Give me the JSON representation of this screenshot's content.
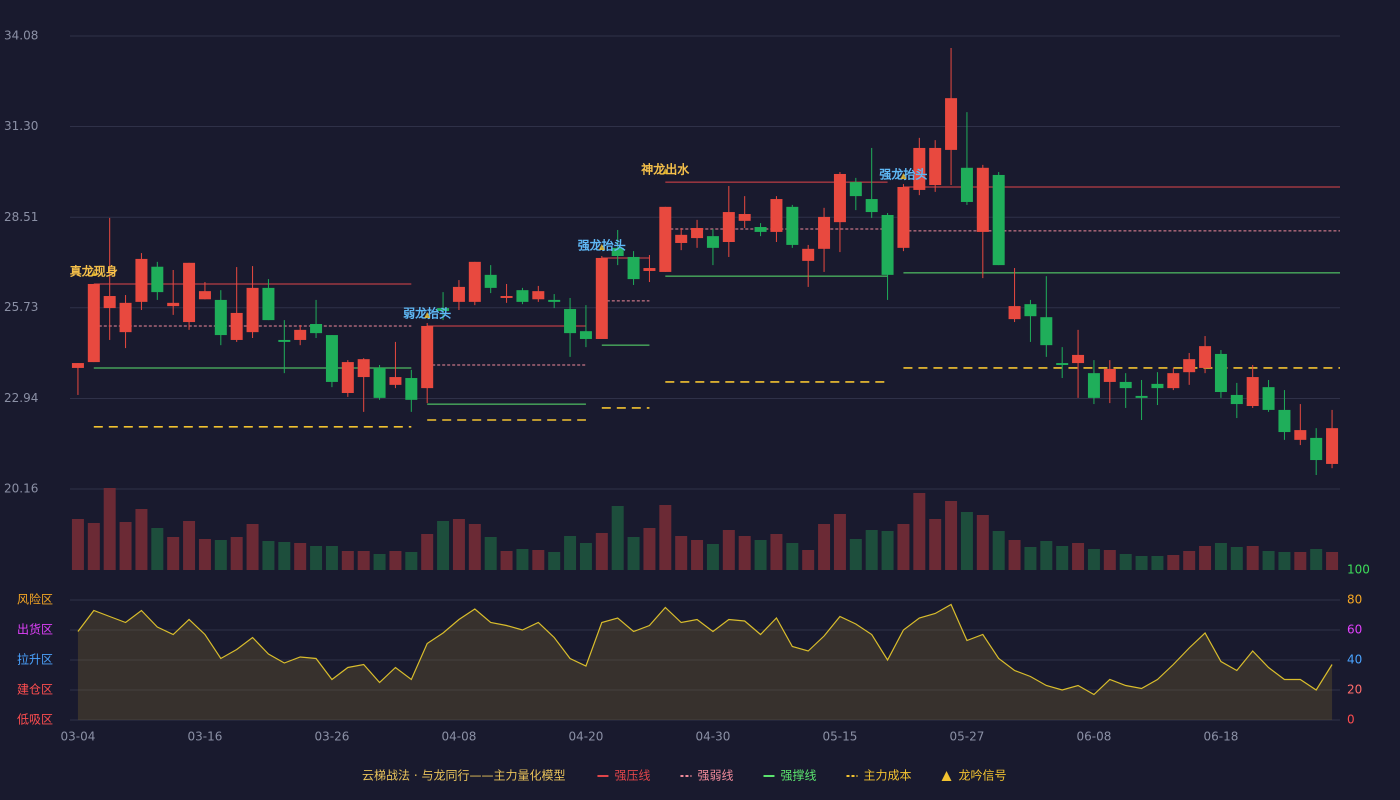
{
  "chart_data": [
    {
      "type": "candlestick",
      "categories": [
        "03-04",
        null,
        null,
        null,
        null,
        null,
        null,
        null,
        "03-16",
        null,
        null,
        null,
        null,
        null,
        null,
        null,
        "03-26",
        null,
        null,
        null,
        null,
        null,
        null,
        null,
        "04-08",
        null,
        null,
        null,
        null,
        null,
        null,
        null,
        "04-20",
        null,
        null,
        null,
        null,
        null,
        null,
        null,
        "04-30",
        null,
        null,
        null,
        null,
        null,
        null,
        null,
        "05-15",
        null,
        null,
        null,
        null,
        null,
        null,
        null,
        "05-27",
        null,
        null,
        null,
        null,
        null,
        null,
        null,
        "06-08",
        null,
        null,
        null,
        null,
        null,
        null,
        null,
        "06-18",
        null,
        null,
        null,
        null,
        null,
        null,
        null
      ],
      "open": [
        23.88,
        24.06,
        25.72,
        24.98,
        25.91,
        26.99,
        25.78,
        25.29,
        25.99,
        25.97,
        24.74,
        24.98,
        26.34,
        24.74,
        24.74,
        25.23,
        24.89,
        23.11,
        23.6,
        23.88,
        23.36,
        23.57,
        23.26,
        25.72,
        25.91,
        25.91,
        26.74,
        26.03,
        26.27,
        25.99,
        25.97,
        25.69,
        25.01,
        24.77,
        27.57,
        27.29,
        26.86,
        26.83,
        27.72,
        27.87,
        27.93,
        27.75,
        28.4,
        28.21,
        28.06,
        28.83,
        27.17,
        27.54,
        28.36,
        29.59,
        29.07,
        28.58,
        27.57,
        29.35,
        29.5,
        30.58,
        30.03,
        28.06,
        29.81,
        25.38,
        25.84,
        25.44,
        24.03,
        24.03,
        23.72,
        23.45,
        23.45,
        23.02,
        23.39,
        23.26,
        23.75,
        23.88,
        24.31,
        23.05,
        22.71,
        23.29,
        22.59,
        21.67,
        21.73,
        20.93
      ],
      "high": [
        24.03,
        26.46,
        28.49,
        26.12,
        27.41,
        27.14,
        26.89,
        27.11,
        26.52,
        26.27,
        26.98,
        27.01,
        26.61,
        25.35,
        25.2,
        25.97,
        24.89,
        24.12,
        24.18,
        23.97,
        24.68,
        23.82,
        25.26,
        26.21,
        26.58,
        27.14,
        27.04,
        26.46,
        26.34,
        26.4,
        26.15,
        26.03,
        25.81,
        27.32,
        28.12,
        27.47,
        27.35,
        28.83,
        28.18,
        28.43,
        28.15,
        29.47,
        29.16,
        28.33,
        29.16,
        28.89,
        27.66,
        28.8,
        29.9,
        29.72,
        30.64,
        28.64,
        29.53,
        30.95,
        30.88,
        33.71,
        31.74,
        30.12,
        29.9,
        26.95,
        25.97,
        26.7,
        24.52,
        25.05,
        24.12,
        24.12,
        23.72,
        23.51,
        23.75,
        23.88,
        24.34,
        24.86,
        24.43,
        23.42,
        23.97,
        23.51,
        23.2,
        22.77,
        22.03,
        22.59
      ],
      "low": [
        23.05,
        24.06,
        24.74,
        24.49,
        25.66,
        25.97,
        25.51,
        25.05,
        25.99,
        24.58,
        24.68,
        24.8,
        25.35,
        23.72,
        24.58,
        24.8,
        23.29,
        22.99,
        22.53,
        22.9,
        23.26,
        22.53,
        22.8,
        25.35,
        25.66,
        25.81,
        26.18,
        25.88,
        25.84,
        25.91,
        25.72,
        24.22,
        24.52,
        24.77,
        27.04,
        26.43,
        26.52,
        26.83,
        27.5,
        27.57,
        27.04,
        27.29,
        28.18,
        27.93,
        27.75,
        27.57,
        26.37,
        26.83,
        27.44,
        28.73,
        28.49,
        25.97,
        27.47,
        29.19,
        29.29,
        29.5,
        28.89,
        26.64,
        27.04,
        25.29,
        24.68,
        24.22,
        23.57,
        22.96,
        22.77,
        22.8,
        22.65,
        22.28,
        22.74,
        23.2,
        23.36,
        23.72,
        22.96,
        22.34,
        22.65,
        22.53,
        21.67,
        21.51,
        20.59,
        20.8
      ],
      "close": [
        24.03,
        26.46,
        26.09,
        25.88,
        27.23,
        26.21,
        25.88,
        27.11,
        26.24,
        24.89,
        25.57,
        26.34,
        25.35,
        24.68,
        25.05,
        24.95,
        23.45,
        24.06,
        24.15,
        22.96,
        23.6,
        22.9,
        25.17,
        25.63,
        26.37,
        27.14,
        26.34,
        26.09,
        25.91,
        26.24,
        25.91,
        24.95,
        24.77,
        27.26,
        27.32,
        26.61,
        26.95,
        28.83,
        27.97,
        28.18,
        27.57,
        28.67,
        28.61,
        28.06,
        29.07,
        27.66,
        27.54,
        28.52,
        29.84,
        29.16,
        28.67,
        26.74,
        29.44,
        30.64,
        30.64,
        32.17,
        28.98,
        30.03,
        27.04,
        25.78,
        25.47,
        24.58,
        23.97,
        24.28,
        22.96,
        23.85,
        23.26,
        22.96,
        23.26,
        23.72,
        24.15,
        24.55,
        23.14,
        22.77,
        23.6,
        22.59,
        21.91,
        21.97,
        21.05,
        22.03
      ],
      "up_color": "#e8493f",
      "down_color": "#1fae5a",
      "ylim": [
        20.16,
        34.08
      ],
      "yticks": [
        20.16,
        22.94,
        25.73,
        28.51,
        {
          "value": 31.3,
          "label": "31.30"
        },
        34.08
      ],
      "grid": true,
      "levels": [
        {
          "name": "强压线",
          "color": "#e0454a",
          "style": "solid",
          "segments": [
            {
              "start": 1,
              "end": 21,
              "value": 26.46
            },
            {
              "start": 22,
              "end": 32,
              "value": 25.17
            },
            {
              "start": 33,
              "end": 36,
              "value": 27.26
            },
            {
              "start": 37,
              "end": 51,
              "value": 29.59
            },
            {
              "start": 52,
              "end": 79,
              "value": 29.44
            }
          ]
        },
        {
          "name": "强弱线",
          "color": "#f08a9a",
          "style": "dotted",
          "segments": [
            {
              "start": 1,
              "end": 21,
              "value": 25.17
            },
            {
              "start": 22,
              "end": 32,
              "value": 23.97
            },
            {
              "start": 33,
              "end": 36,
              "value": 25.94
            },
            {
              "start": 37,
              "end": 51,
              "value": 28.15
            },
            {
              "start": 52,
              "end": 79,
              "value": 28.09
            }
          ]
        },
        {
          "name": "强撑线",
          "color": "#5be36e",
          "style": "solid",
          "segments": [
            {
              "start": 1,
              "end": 21,
              "value": 23.88
            },
            {
              "start": 22,
              "end": 32,
              "value": 22.77
            },
            {
              "start": 33,
              "end": 36,
              "value": 24.58
            },
            {
              "start": 37,
              "end": 51,
              "value": 26.7
            },
            {
              "start": 52,
              "end": 79,
              "value": 26.8
            }
          ]
        },
        {
          "name": "主力成本",
          "color": "#f2c230",
          "style": "dashed",
          "segments": [
            {
              "start": 1,
              "end": 21,
              "value": 22.07
            },
            {
              "start": 22,
              "end": 32,
              "value": 22.28
            },
            {
              "start": 33,
              "end": 36,
              "value": 22.65
            },
            {
              "start": 37,
              "end": 51,
              "value": 23.45
            },
            {
              "start": 52,
              "end": 79,
              "value": 23.88
            }
          ]
        }
      ],
      "signals": {
        "name": "龙吟信号",
        "color": "#f2c230",
        "items": [
          {
            "label": "真龙现身",
            "index": 1,
            "color": "#f5c04a"
          },
          {
            "label": "弱龙抬头",
            "index": 22,
            "color": "#5fb8f5"
          },
          {
            "label": "强龙抬头",
            "index": 33,
            "color": "#5fb8f5"
          },
          {
            "label": "神龙出水",
            "index": 37,
            "color": "#f5c04a"
          },
          {
            "label": "强龙抬头",
            "index": 52,
            "color": "#5fb8f5"
          }
        ]
      },
      "model_name": "云梯战法 · 与龙同行——主力量化模型"
    },
    {
      "type": "bar",
      "values": [
        51,
        47,
        82,
        48,
        61,
        42,
        33,
        49,
        31,
        30,
        33,
        46,
        29,
        28,
        27,
        24,
        24,
        19,
        19,
        16,
        19,
        18,
        36,
        49,
        51,
        46,
        33,
        19,
        21,
        20,
        18,
        34,
        27,
        37,
        64,
        33,
        42,
        65,
        34,
        30,
        26,
        40,
        34,
        30,
        36,
        27,
        20,
        46,
        56,
        31,
        40,
        39,
        46,
        77,
        51,
        69,
        58,
        55,
        39,
        30,
        23,
        29,
        24,
        27,
        21,
        20,
        16,
        14,
        14,
        15,
        19,
        24,
        27,
        23,
        24,
        19,
        18,
        18,
        21,
        18
      ],
      "ylim": [
        0,
        82
      ],
      "up_color": "#6b2a35",
      "down_color": "#1d4e3c"
    },
    {
      "type": "area",
      "values": [
        59,
        73,
        69,
        65,
        73,
        62,
        57,
        67,
        57,
        41,
        47,
        55,
        44,
        38,
        42,
        41,
        27,
        35,
        37,
        25,
        35,
        27,
        51,
        58,
        67,
        74,
        65,
        63,
        60,
        65,
        55,
        41,
        36,
        65,
        68,
        59,
        63,
        75,
        65,
        67,
        59,
        67,
        66,
        57,
        68,
        49,
        46,
        56,
        69,
        64,
        57,
        40,
        60,
        68,
        71,
        77,
        53,
        57,
        41,
        33,
        29,
        23,
        20,
        23,
        17,
        27,
        23,
        21,
        27,
        37,
        48,
        58,
        39,
        33,
        46,
        35,
        27,
        27,
        20,
        37
      ],
      "color": "#d9bd2c",
      "fill": "rgba(120,100,45,0.32)",
      "ylim": [
        0,
        100
      ],
      "yticks": [
        0,
        20,
        40,
        60,
        80,
        100
      ],
      "ytick_colors": [
        "#ff4d4f",
        "#ff6b6b",
        "#4aa3ff",
        "#e040fb",
        "#f5a623",
        "#3ddc5a"
      ],
      "zones": [
        {
          "label": "风险区",
          "value": 80,
          "color": "#f5a623"
        },
        {
          "label": "出货区",
          "value": 60,
          "color": "#e040fb"
        },
        {
          "label": "拉升区",
          "value": 40,
          "color": "#4aa3ff"
        },
        {
          "label": "建仓区",
          "value": 20,
          "color": "#ff4d4f"
        },
        {
          "label": "低吸区",
          "value": 0,
          "color": "#ff4d4f"
        }
      ],
      "grid": true
    }
  ]
}
